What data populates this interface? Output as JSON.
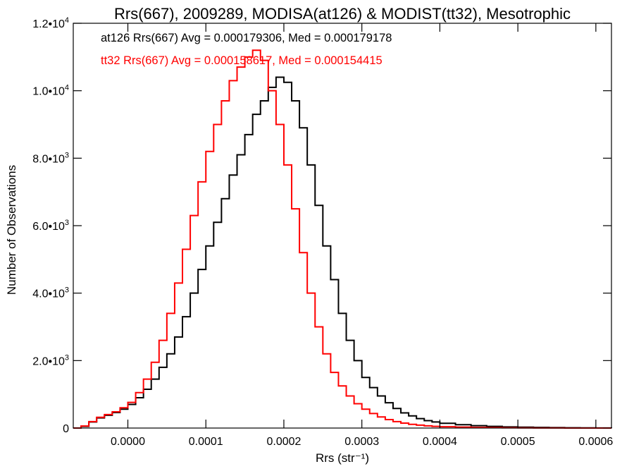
{
  "chart_data": {
    "type": "line",
    "title": "Rrs(667), 2009289, MODISA(at126) & MODIST(tt32), Mesotrophic",
    "xlabel": "Rrs (str⁻¹)",
    "ylabel": "Number of Observations",
    "xlim": [
      -7e-05,
      0.00062
    ],
    "ylim": [
      0,
      12000
    ],
    "x_ticks": [
      0.0,
      0.0001,
      0.0002,
      0.0003,
      0.0004,
      0.0005,
      0.0006
    ],
    "x_tick_labels": [
      "0.0000",
      "0.0001",
      "0.0002",
      "0.0003",
      "0.0004",
      "0.0005",
      "0.0006"
    ],
    "y_ticks": [
      0,
      2000,
      4000,
      6000,
      8000,
      10000,
      12000
    ],
    "y_tick_labels": [
      {
        "mant": "0",
        "exp": ""
      },
      {
        "mant": "2.0•10",
        "exp": "3"
      },
      {
        "mant": "4.0•10",
        "exp": "3"
      },
      {
        "mant": "6.0•10",
        "exp": "3"
      },
      {
        "mant": "8.0•10",
        "exp": "3"
      },
      {
        "mant": "1.0•10",
        "exp": "4"
      },
      {
        "mant": "1.2•10",
        "exp": "4"
      }
    ],
    "grid": false,
    "annotations": [
      {
        "text": "at126 Rrs(667) Avg = 0.000179306, Med = 0.000179178",
        "color": "#000000"
      },
      {
        "text": "tt32 Rrs(667) Avg = 0.000158617, Med = 0.000154415",
        "color": "#ff0000"
      }
    ],
    "series": [
      {
        "color": "#000000",
        "style": "step",
        "points": [
          [
            -7e-05,
            0
          ],
          [
            -6e-05,
            50
          ],
          [
            -5e-05,
            180
          ],
          [
            -4e-05,
            300
          ],
          [
            -3e-05,
            380
          ],
          [
            -2e-05,
            460
          ],
          [
            -1e-05,
            560
          ],
          [
            0.0,
            700
          ],
          [
            1e-05,
            900
          ],
          [
            2e-05,
            1150
          ],
          [
            3e-05,
            1450
          ],
          [
            4e-05,
            1800
          ],
          [
            5e-05,
            2200
          ],
          [
            6e-05,
            2700
          ],
          [
            7e-05,
            3300
          ],
          [
            8e-05,
            4000
          ],
          [
            9e-05,
            4700
          ],
          [
            0.0001,
            5400
          ],
          [
            0.00011,
            6100
          ],
          [
            0.00012,
            6800
          ],
          [
            0.00013,
            7500
          ],
          [
            0.00014,
            8100
          ],
          [
            0.00015,
            8700
          ],
          [
            0.00016,
            9300
          ],
          [
            0.00017,
            9700
          ],
          [
            0.00018,
            10100
          ],
          [
            0.00019,
            10400
          ],
          [
            0.0002,
            10250
          ],
          [
            0.00021,
            9700
          ],
          [
            0.00022,
            8900
          ],
          [
            0.00023,
            7800
          ],
          [
            0.00024,
            6600
          ],
          [
            0.00025,
            5400
          ],
          [
            0.00026,
            4400
          ],
          [
            0.00027,
            3400
          ],
          [
            0.00028,
            2600
          ],
          [
            0.00029,
            2000
          ],
          [
            0.0003,
            1500
          ],
          [
            0.00031,
            1200
          ],
          [
            0.00032,
            950
          ],
          [
            0.00033,
            750
          ],
          [
            0.00034,
            580
          ],
          [
            0.00035,
            450
          ],
          [
            0.00036,
            360
          ],
          [
            0.00037,
            280
          ],
          [
            0.00038,
            220
          ],
          [
            0.00039,
            180
          ],
          [
            0.0004,
            140
          ],
          [
            0.00042,
            100
          ],
          [
            0.00044,
            70
          ],
          [
            0.00046,
            50
          ],
          [
            0.00048,
            35
          ],
          [
            0.0005,
            25
          ],
          [
            0.00052,
            18
          ],
          [
            0.00054,
            12
          ],
          [
            0.00056,
            8
          ],
          [
            0.00058,
            5
          ],
          [
            0.0006,
            3
          ],
          [
            0.00062,
            2
          ]
        ]
      },
      {
        "color": "#ff0000",
        "style": "step",
        "points": [
          [
            -7e-05,
            0
          ],
          [
            -6e-05,
            60
          ],
          [
            -5e-05,
            190
          ],
          [
            -4e-05,
            320
          ],
          [
            -3e-05,
            400
          ],
          [
            -2e-05,
            480
          ],
          [
            -1e-05,
            600
          ],
          [
            0.0,
            760
          ],
          [
            1e-05,
            1050
          ],
          [
            2e-05,
            1450
          ],
          [
            3e-05,
            1950
          ],
          [
            4e-05,
            2600
          ],
          [
            5e-05,
            3400
          ],
          [
            6e-05,
            4300
          ],
          [
            7e-05,
            5300
          ],
          [
            8e-05,
            6300
          ],
          [
            9e-05,
            7300
          ],
          [
            0.0001,
            8200
          ],
          [
            0.00011,
            9000
          ],
          [
            0.00012,
            9700
          ],
          [
            0.00013,
            10300
          ],
          [
            0.00014,
            10700
          ],
          [
            0.00015,
            11000
          ],
          [
            0.00016,
            11200
          ],
          [
            0.00017,
            10900
          ],
          [
            0.00018,
            10000
          ],
          [
            0.00019,
            9000
          ],
          [
            0.0002,
            7800
          ],
          [
            0.00021,
            6500
          ],
          [
            0.00022,
            5200
          ],
          [
            0.00023,
            4000
          ],
          [
            0.00024,
            3000
          ],
          [
            0.00025,
            2200
          ],
          [
            0.00026,
            1650
          ],
          [
            0.00027,
            1250
          ],
          [
            0.00028,
            950
          ],
          [
            0.00029,
            720
          ],
          [
            0.0003,
            560
          ],
          [
            0.00031,
            430
          ],
          [
            0.00032,
            330
          ],
          [
            0.00033,
            250
          ],
          [
            0.00034,
            190
          ],
          [
            0.00035,
            145
          ],
          [
            0.00036,
            110
          ],
          [
            0.00037,
            85
          ],
          [
            0.00038,
            65
          ],
          [
            0.00039,
            50
          ],
          [
            0.0004,
            40
          ],
          [
            0.00042,
            28
          ],
          [
            0.00044,
            18
          ],
          [
            0.00046,
            12
          ],
          [
            0.00048,
            8
          ],
          [
            0.0005,
            5
          ],
          [
            0.00052,
            3
          ],
          [
            0.00054,
            2
          ],
          [
            0.00056,
            1
          ],
          [
            0.00058,
            1
          ],
          [
            0.0006,
            0
          ],
          [
            0.00062,
            0
          ]
        ]
      }
    ]
  }
}
